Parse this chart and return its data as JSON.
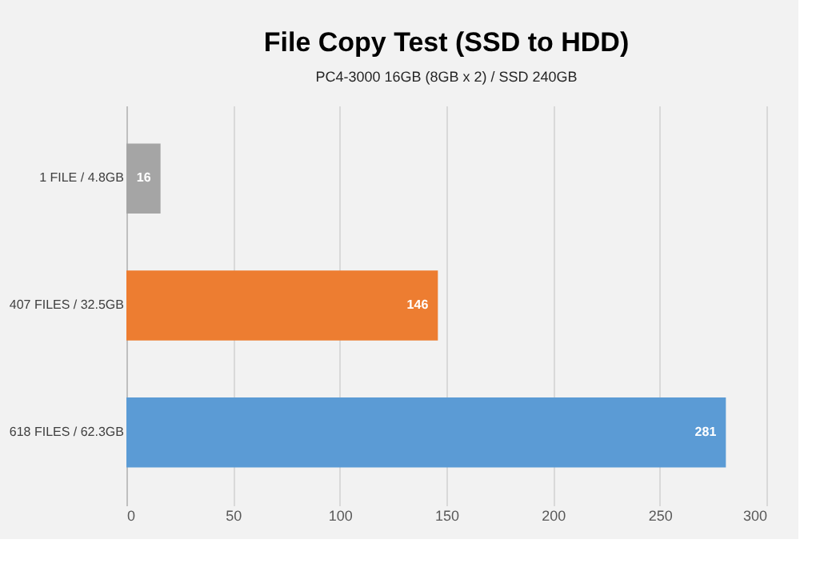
{
  "chart_data": {
    "type": "bar",
    "orientation": "horizontal",
    "title": "File Copy Test (SSD to HDD)",
    "subtitle": [
      "PC4-3000 16GB (8GB x 2) / SSD 240GB"
    ],
    "categories": [
      "1 FILE / 4.8GB",
      "407 FILES / 32.5GB",
      "618 FILES / 62.3GB"
    ],
    "values": [
      16,
      146,
      281
    ],
    "colors": [
      "#a5a5a5",
      "#ed7d31",
      "#5b9bd5"
    ],
    "xlim": [
      0,
      300
    ],
    "xticks": [
      0,
      50,
      100,
      150,
      200,
      250,
      300
    ],
    "grid": "x",
    "data_labels": true
  }
}
